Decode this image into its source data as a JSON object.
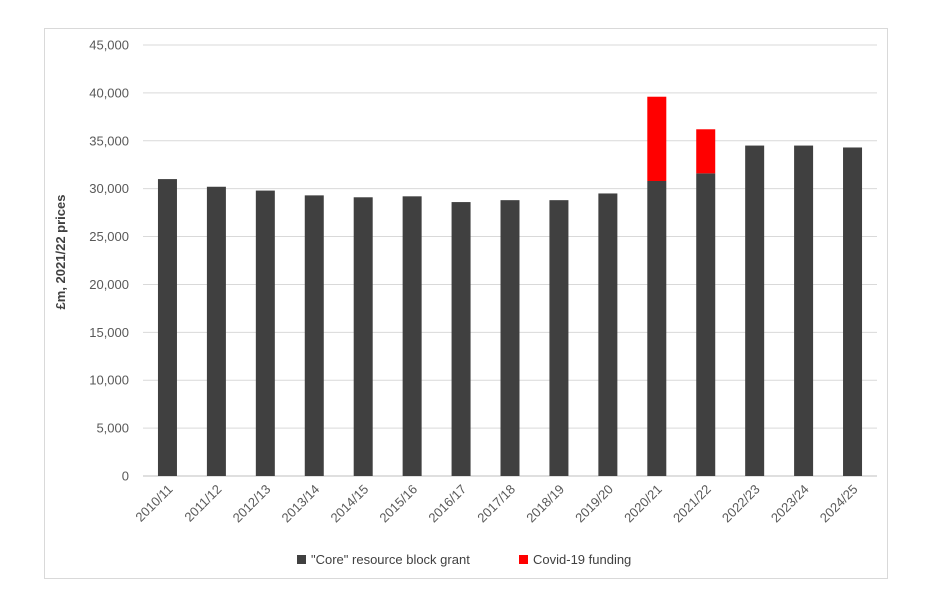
{
  "chart_data": {
    "type": "bar",
    "stacked": true,
    "title": "",
    "xlabel": "",
    "ylabel": "£m, 2021/22 prices",
    "ylim": [
      0,
      45000
    ],
    "yticks": [
      "0",
      "5,000",
      "10,000",
      "15,000",
      "20,000",
      "25,000",
      "30,000",
      "35,000",
      "40,000",
      "45,000"
    ],
    "ytick_values": [
      0,
      5000,
      10000,
      15000,
      20000,
      25000,
      30000,
      35000,
      40000,
      45000
    ],
    "grid": true,
    "legend_position": "bottom",
    "categories": [
      "2010/11",
      "2011/12",
      "2012/13",
      "2013/14",
      "2014/15",
      "2015/16",
      "2016/17",
      "2017/18",
      "2018/19",
      "2019/20",
      "2020/21",
      "2021/22",
      "2022/23",
      "2023/24",
      "2024/25"
    ],
    "series": [
      {
        "name": "\"Core\" resource block grant",
        "color": "#404040",
        "values": [
          31000,
          30200,
          29800,
          29300,
          29100,
          29200,
          28600,
          28800,
          28800,
          29500,
          30800,
          31600,
          34500,
          34500,
          34300
        ]
      },
      {
        "name": "Covid-19 funding",
        "color": "#ff0000",
        "values": [
          0,
          0,
          0,
          0,
          0,
          0,
          0,
          0,
          0,
          0,
          8800,
          4600,
          0,
          0,
          0
        ]
      }
    ]
  }
}
